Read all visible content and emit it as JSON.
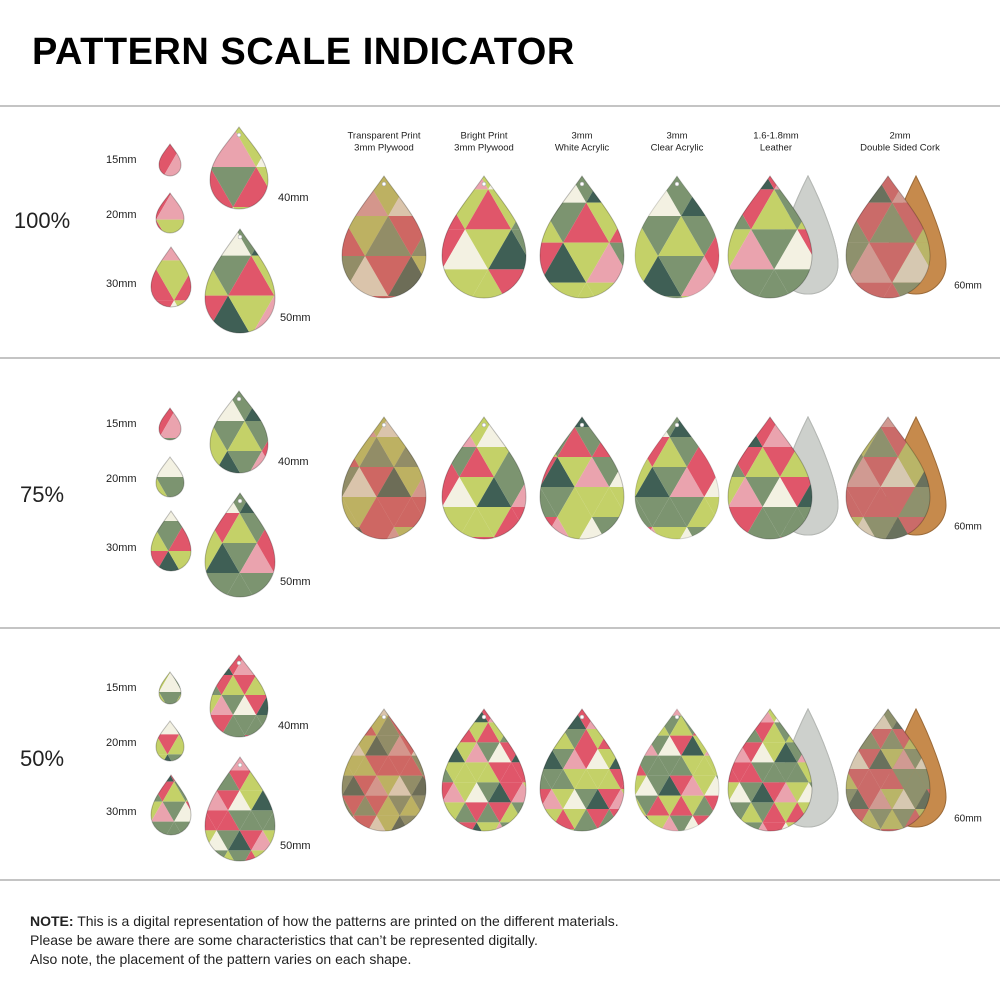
{
  "title": "PATTERN SCALE INDICATOR",
  "materials": [
    {
      "line1": "Transparent Print",
      "line2": "3mm Plywood"
    },
    {
      "line1": "Bright Print",
      "line2": "3mm Plywood"
    },
    {
      "line1": "3mm",
      "line2": "White Acrylic"
    },
    {
      "line1": "3mm",
      "line2": "Clear Acrylic"
    },
    {
      "line1": "1.6-1.8mm",
      "line2": "Leather"
    },
    {
      "line1": "2mm",
      "line2": "Double Sided Cork"
    }
  ],
  "sections": [
    {
      "scale": "100%",
      "sizes": [
        "15mm",
        "20mm",
        "30mm",
        "40mm",
        "50mm"
      ],
      "large_size": "60mm"
    },
    {
      "scale": "75%",
      "sizes": [
        "15mm",
        "20mm",
        "30mm",
        "40mm",
        "50mm"
      ],
      "large_size": "60mm"
    },
    {
      "scale": "50%",
      "sizes": [
        "15mm",
        "20mm",
        "30mm",
        "40mm",
        "50mm"
      ],
      "large_size": "60mm"
    }
  ],
  "note": {
    "label": "NOTE:",
    "lines": [
      "This is a digital representation of how the patterns are printed on the different materials.",
      "Please be aware there are some characteristics that can’t be represented digitally.",
      "Also note, the placement of the pattern varies on each shape."
    ]
  }
}
